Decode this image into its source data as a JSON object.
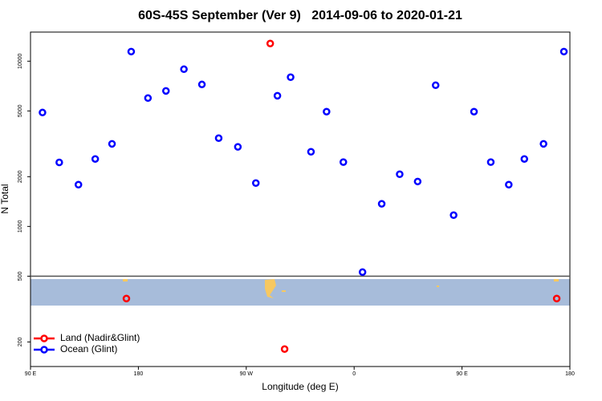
{
  "chart_data": {
    "type": "scatter",
    "title": "60S-45S September (Ver 9)   2014-09-06 to 2020-01-21",
    "xlabel": "Longitude (deg E)",
    "ylabel": "N Total",
    "xlim": [
      90,
      540
    ],
    "xticks": [
      {
        "value": 90,
        "label": "90 E"
      },
      180,
      {
        "value": 270,
        "label": "90 W"
      },
      {
        "value": 360,
        "label": "0"
      },
      {
        "value": 450,
        "label": "90 E"
      },
      {
        "value": 540,
        "label": "180"
      }
    ],
    "ylim": [
      142,
      15000
    ],
    "log_y": true,
    "yticks": [
      200,
      500,
      1000,
      2000,
      5000,
      10000
    ],
    "hline": 500,
    "legend": "bottom-left",
    "series": [
      {
        "name": "Land (Nadir&Glint)",
        "color": "#ff0000",
        "x": [
          170,
          290,
          302,
          529
        ],
        "values": [
          366,
          12790,
          181,
          366
        ]
      },
      {
        "name": "Ocean (Glint)",
        "color": "#0000ff",
        "x": [
          100,
          114,
          130,
          144,
          158,
          174,
          188,
          203,
          218,
          233,
          247,
          263,
          278,
          296,
          307,
          324,
          337,
          351,
          367,
          383,
          398,
          413,
          428,
          443,
          460,
          474,
          489,
          502,
          518,
          535
        ],
        "values": [
          4890,
          2440,
          1790,
          2560,
          3160,
          11430,
          5980,
          6610,
          8940,
          7230,
          3420,
          3030,
          1830,
          6180,
          8000,
          2830,
          4950,
          2450,
          529,
          1370,
          2070,
          1870,
          7150,
          1170,
          4950,
          2450,
          1790,
          2560,
          3160,
          11430
        ]
      }
    ]
  }
}
